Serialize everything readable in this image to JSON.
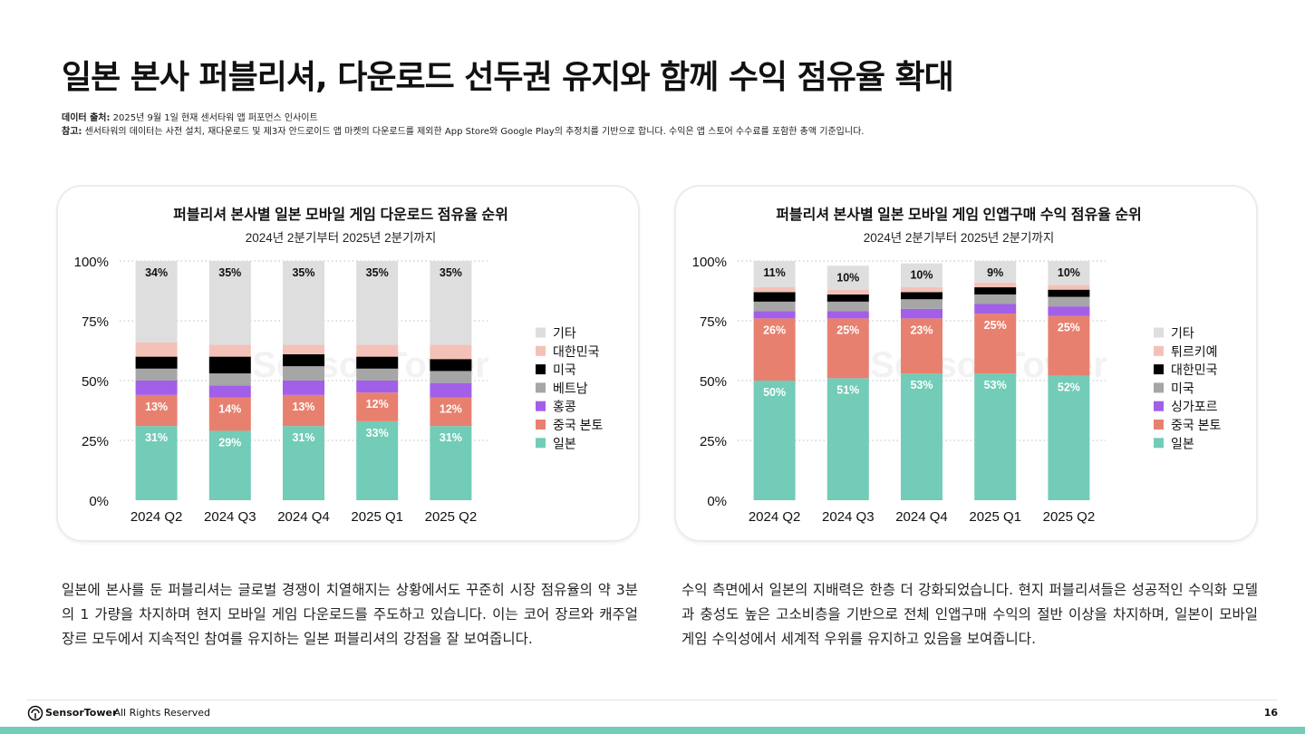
{
  "title": "일본 본사 퍼블리셔, 다운로드 선두권 유지와 함께 수익 점유율 확대",
  "source_label": "데이터 출처:",
  "source_text": "2025년 9월 1일 현재 센서타워 앱 퍼포먼스 인사이트",
  "note_label": "참고:",
  "note_text": "센서타워의 데이터는 사전 설치, 재다운로드 및 제3자 안드로이드 앱 마켓의 다운로드를 제외한 App Store와 Google Play의 추정치를 기반으로 합니다. 수익은 앱 스토어 수수료를 포함한 총액 기준입니다.",
  "watermark": "Sensor Tower",
  "paragraph_left": "일본에 본사를 둔 퍼블리셔는 글로벌 경쟁이 치열해지는 상황에서도 꾸준히 시장 점유율의 약 3분의 1 가량을 차지하며 현지 모바일 게임 다운로드를 주도하고 있습니다. 이는 코어 장르와 캐주얼 장르 모두에서 지속적인 참여를 유지하는 일본 퍼블리셔의 강점을 잘 보여줍니다.",
  "paragraph_right": "수익 측면에서 일본의 지배력은 한층 더 강화되었습니다. 현지 퍼블리셔들은 성공적인 수익화 모델과 충성도 높은 고소비층을 기반으로 전체 인앱구매 수익의 절반 이상을 차지하며, 일본이 모바일 게임 수익성에서 세계적 우위를 유지하고 있음을 보여줍니다.",
  "footer": {
    "brand": "SensorTower",
    "rights": " - All Rights Reserved",
    "page": "16"
  },
  "chart_data": [
    {
      "type": "bar",
      "stacked": true,
      "title": "퍼블리셔 본사별 일본 모바일 게임 다운로드 점유율 순위",
      "subtitle": "2024년 2분기부터 2025년 2분기까지",
      "categories": [
        "2024 Q2",
        "2024 Q3",
        "2024 Q4",
        "2025 Q1",
        "2025 Q2"
      ],
      "ylim": [
        0,
        100
      ],
      "yticks": [
        "0%",
        "25%",
        "50%",
        "75%",
        "100%"
      ],
      "series": [
        {
          "name": "일본",
          "color": "#72ccb7",
          "values": [
            31,
            29,
            31,
            33,
            31
          ],
          "labels": [
            "31%",
            "29%",
            "31%",
            "33%",
            "31%"
          ]
        },
        {
          "name": "중국 본토",
          "color": "#e8806f",
          "values": [
            13,
            14,
            13,
            12,
            12
          ],
          "labels": [
            "13%",
            "14%",
            "13%",
            "12%",
            "12%"
          ]
        },
        {
          "name": "홍콩",
          "color": "#a25fe8",
          "values": [
            6,
            5,
            6,
            5,
            6
          ]
        },
        {
          "name": "베트남",
          "color": "#a6a6a6",
          "values": [
            5,
            5,
            6,
            5,
            5
          ]
        },
        {
          "name": "미국",
          "color": "#000000",
          "values": [
            5,
            7,
            5,
            5,
            5
          ]
        },
        {
          "name": "대한민국",
          "color": "#f4c1b8",
          "values": [
            6,
            5,
            4,
            5,
            6
          ]
        },
        {
          "name": "기타",
          "color": "#dedede",
          "values": [
            34,
            35,
            35,
            35,
            35
          ],
          "labels": [
            "34%",
            "35%",
            "35%",
            "35%",
            "35%"
          ]
        }
      ]
    },
    {
      "type": "bar",
      "stacked": true,
      "title": "퍼블리셔 본사별 일본 모바일 게임 인앱구매 수익 점유율 순위",
      "subtitle": "2024년 2분기부터 2025년 2분기까지",
      "categories": [
        "2024 Q2",
        "2024 Q3",
        "2024 Q4",
        "2025 Q1",
        "2025 Q2"
      ],
      "ylim": [
        0,
        100
      ],
      "yticks": [
        "0%",
        "25%",
        "50%",
        "75%",
        "100%"
      ],
      "series": [
        {
          "name": "일본",
          "color": "#72ccb7",
          "values": [
            50,
            51,
            53,
            53,
            52
          ],
          "labels": [
            "50%",
            "51%",
            "53%",
            "53%",
            "52%"
          ]
        },
        {
          "name": "중국 본토",
          "color": "#e8806f",
          "values": [
            26,
            25,
            23,
            25,
            25
          ],
          "labels": [
            "26%",
            "25%",
            "23%",
            "25%",
            "25%"
          ]
        },
        {
          "name": "싱가포르",
          "color": "#a25fe8",
          "values": [
            3,
            3,
            4,
            4,
            4
          ]
        },
        {
          "name": "미국",
          "color": "#a6a6a6",
          "values": [
            4,
            4,
            4,
            4,
            4
          ]
        },
        {
          "name": "대한민국",
          "color": "#000000",
          "values": [
            4,
            3,
            3,
            3,
            3
          ]
        },
        {
          "name": "튀르키예",
          "color": "#f4c1b8",
          "values": [
            2,
            2,
            2,
            2,
            2
          ]
        },
        {
          "name": "기타",
          "color": "#dedede",
          "values": [
            11,
            10,
            10,
            9,
            10
          ],
          "labels": [
            "11%",
            "10%",
            "10%",
            "9%",
            "10%"
          ]
        }
      ]
    }
  ]
}
